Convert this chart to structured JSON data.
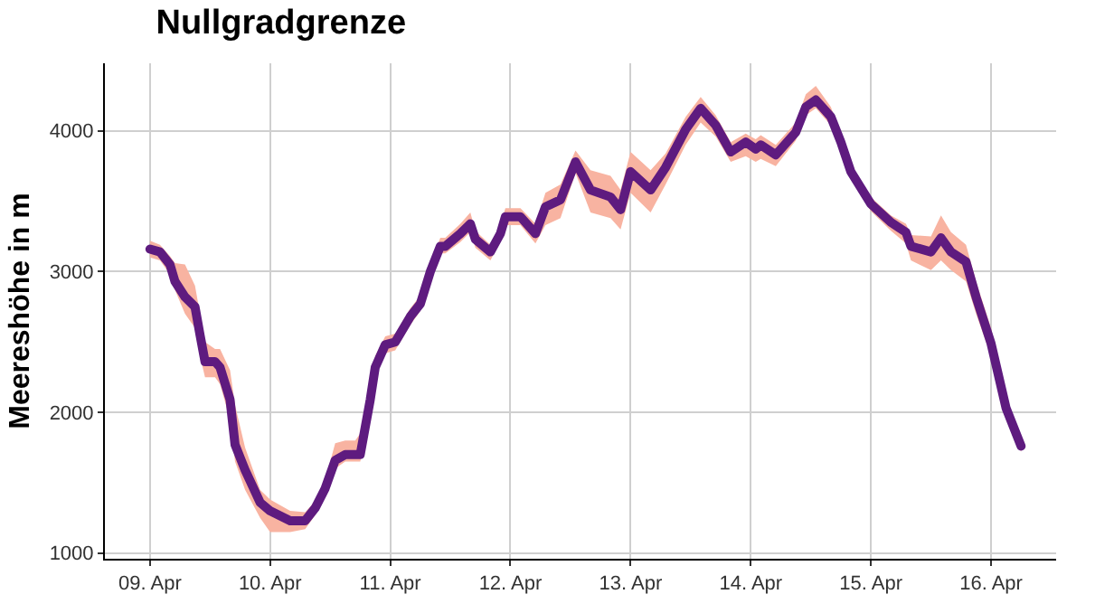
{
  "chart_data": {
    "type": "line",
    "title": "Nullgradgrenze",
    "ylabel": "Meereshöhe in m",
    "xlim": [
      "--04-08T15:00",
      "--04-16T13:00"
    ],
    "xticks": [
      {
        "value": "--04-09",
        "label": "09. Apr"
      },
      {
        "value": "--04-10",
        "label": "10. Apr"
      },
      {
        "value": "--04-11",
        "label": "11. Apr"
      },
      {
        "value": "--04-12",
        "label": "12. Apr"
      },
      {
        "value": "--04-13",
        "label": "13. Apr"
      },
      {
        "value": "--04-14",
        "label": "14. Apr"
      },
      {
        "value": "--04-15",
        "label": "15. Apr"
      },
      {
        "value": "--04-16",
        "label": "16. Apr"
      }
    ],
    "ylim": [
      960,
      4480
    ],
    "yticks": [
      1000,
      2000,
      3000,
      4000
    ],
    "grid": true,
    "series": [
      {
        "color": "#5e1b7f",
        "x": [
          "--04-09T00:00",
          "--04-09T02:00",
          "--04-09T04:00",
          "--04-09T05:00",
          "--04-09T07:00",
          "--04-09T09:00",
          "--04-09T10:00",
          "--04-09T11:00",
          "--04-09T13:00",
          "--04-09T14:00",
          "--04-09T16:00",
          "--04-09T17:00",
          "--04-09T19:00",
          "--04-09T22:00",
          "--04-10T00:00",
          "--04-10T04:00",
          "--04-10T07:00",
          "--04-10T09:00",
          "--04-10T11:00",
          "--04-10T13:00",
          "--04-10T15:00",
          "--04-10T17:00",
          "--04-10T18:00",
          "--04-10T20:00",
          "--04-10T21:00",
          "--04-10T23:00",
          "--04-11T01:00",
          "--04-11T04:00",
          "--04-11T06:00",
          "--04-11T08:00",
          "--04-11T10:00",
          "--04-11T11:00",
          "--04-11T14:00",
          "--04-11T16:00",
          "--04-11T17:00",
          "--04-11T20:00",
          "--04-11T22:00",
          "--04-11T23:00",
          "--04-12T02:00",
          "--04-12T05:00",
          "--04-12T07:00",
          "--04-12T10:00",
          "--04-12T13:00",
          "--04-12T16:00",
          "--04-12T20:00",
          "--04-12T22:00",
          "--04-13T00:00",
          "--04-13T04:00",
          "--04-13T07:00",
          "--04-13T11:00",
          "--04-13T14:00",
          "--04-13T17:00",
          "--04-13T20:00",
          "--04-13T23:00",
          "--04-14T01:00",
          "--04-14T02:00",
          "--04-14T05:00",
          "--04-14T09:00",
          "--04-14T11:00",
          "--04-14T13:00",
          "--04-14T16:00",
          "--04-14T18:00",
          "--04-14T20:00",
          "--04-15T00:00",
          "--04-15T04:00",
          "--04-15T07:00",
          "--04-15T08:00",
          "--04-15T12:00",
          "--04-15T14:00",
          "--04-15T16:00",
          "--04-15T19:00",
          "--04-15T21:00",
          "--04-16T00:00",
          "--04-16T03:00",
          "--04-16T04:00",
          "--04-16T06:00"
        ],
        "values": [
          3160,
          3140,
          3050,
          2930,
          2820,
          2750,
          2550,
          2360,
          2360,
          2320,
          2090,
          1770,
          1590,
          1360,
          1300,
          1230,
          1230,
          1320,
          1460,
          1660,
          1700,
          1700,
          1700,
          2090,
          2320,
          2480,
          2500,
          2680,
          2770,
          3000,
          3180,
          3180,
          3270,
          3340,
          3230,
          3140,
          3270,
          3390,
          3390,
          3270,
          3460,
          3510,
          3780,
          3580,
          3530,
          3440,
          3710,
          3580,
          3740,
          4010,
          4160,
          4040,
          3850,
          3920,
          3870,
          3900,
          3830,
          3990,
          4170,
          4220,
          4100,
          3920,
          3710,
          3480,
          3350,
          3280,
          3180,
          3140,
          3240,
          3140,
          3070,
          2820,
          2490,
          2030,
          1940,
          1760
        ],
        "lower": [
          3100,
          3080,
          2980,
          2870,
          2700,
          2600,
          2400,
          2250,
          2250,
          2200,
          1950,
          1650,
          1450,
          1250,
          1150,
          1150,
          1170,
          1270,
          1400,
          1600,
          1650,
          1650,
          1650,
          1950,
          2250,
          2420,
          2440,
          2620,
          2720,
          2950,
          3130,
          3130,
          3210,
          3280,
          3170,
          3080,
          3210,
          3330,
          3330,
          3200,
          3330,
          3380,
          3700,
          3420,
          3380,
          3300,
          3560,
          3420,
          3620,
          3900,
          4060,
          3960,
          3780,
          3820,
          3780,
          3800,
          3750,
          3930,
          4110,
          4160,
          4040,
          3860,
          3660,
          3430,
          3290,
          3200,
          3080,
          3010,
          3080,
          3010,
          2930,
          2700,
          2400,
          1950,
          1880,
          1720
        ],
        "upper": [
          3220,
          3190,
          3110,
          3060,
          3050,
          2900,
          2700,
          2500,
          2450,
          2450,
          2300,
          2050,
          1750,
          1450,
          1380,
          1300,
          1290,
          1370,
          1520,
          1780,
          1800,
          1800,
          1850,
          2200,
          2400,
          2540,
          2560,
          2740,
          2830,
          3060,
          3240,
          3240,
          3340,
          3420,
          3290,
          3190,
          3340,
          3450,
          3450,
          3340,
          3560,
          3620,
          3860,
          3720,
          3680,
          3580,
          3850,
          3720,
          3840,
          4100,
          4240,
          4110,
          3920,
          3980,
          3940,
          3970,
          3900,
          4060,
          4260,
          4320,
          4170,
          3980,
          3760,
          3530,
          3400,
          3340,
          3260,
          3250,
          3400,
          3280,
          3190,
          2930,
          2600,
          2120,
          2000,
          1790
        ]
      }
    ]
  }
}
